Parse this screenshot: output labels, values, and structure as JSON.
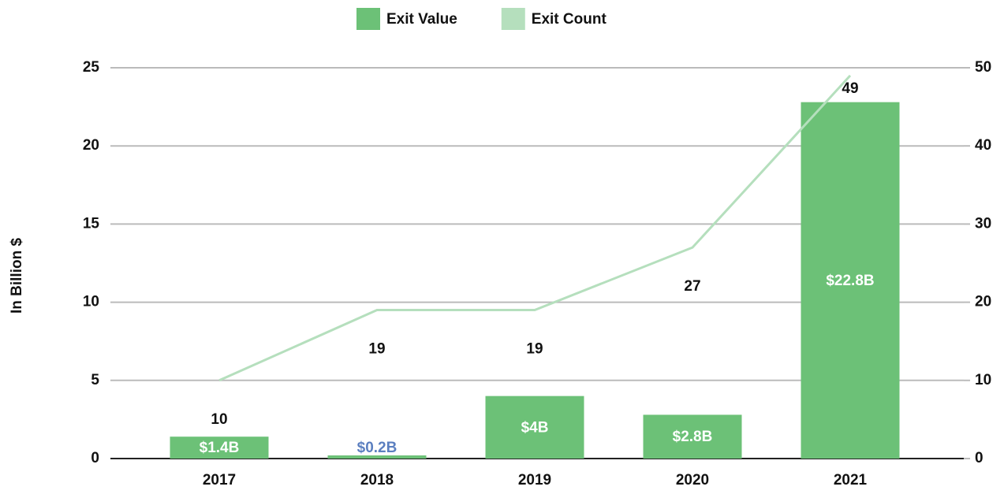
{
  "chart_data": {
    "type": "bar",
    "y_label": "In Billion $",
    "categories": [
      "2017",
      "2018",
      "2019",
      "2020",
      "2021"
    ],
    "series": [
      {
        "name": "Exit Value",
        "type": "bar",
        "color": "#6cc177",
        "values": [
          1.4,
          0.2,
          4,
          2.8,
          22.8
        ],
        "value_labels": [
          "$1.4B",
          "$0.2B",
          "$4B",
          "$2.8B",
          "$22.8B"
        ]
      },
      {
        "name": "Exit Count",
        "type": "line",
        "axis": "y2",
        "color": "#b5dfbd",
        "values": [
          10,
          19,
          19,
          27,
          49
        ]
      }
    ],
    "ylim": [
      0,
      25
    ],
    "yticks": [
      0,
      5,
      10,
      15,
      20,
      25
    ],
    "y2lim": [
      0,
      50
    ],
    "y2ticks": [
      0,
      10,
      20,
      30,
      40,
      50
    ],
    "grid": true,
    "legend": "top"
  }
}
